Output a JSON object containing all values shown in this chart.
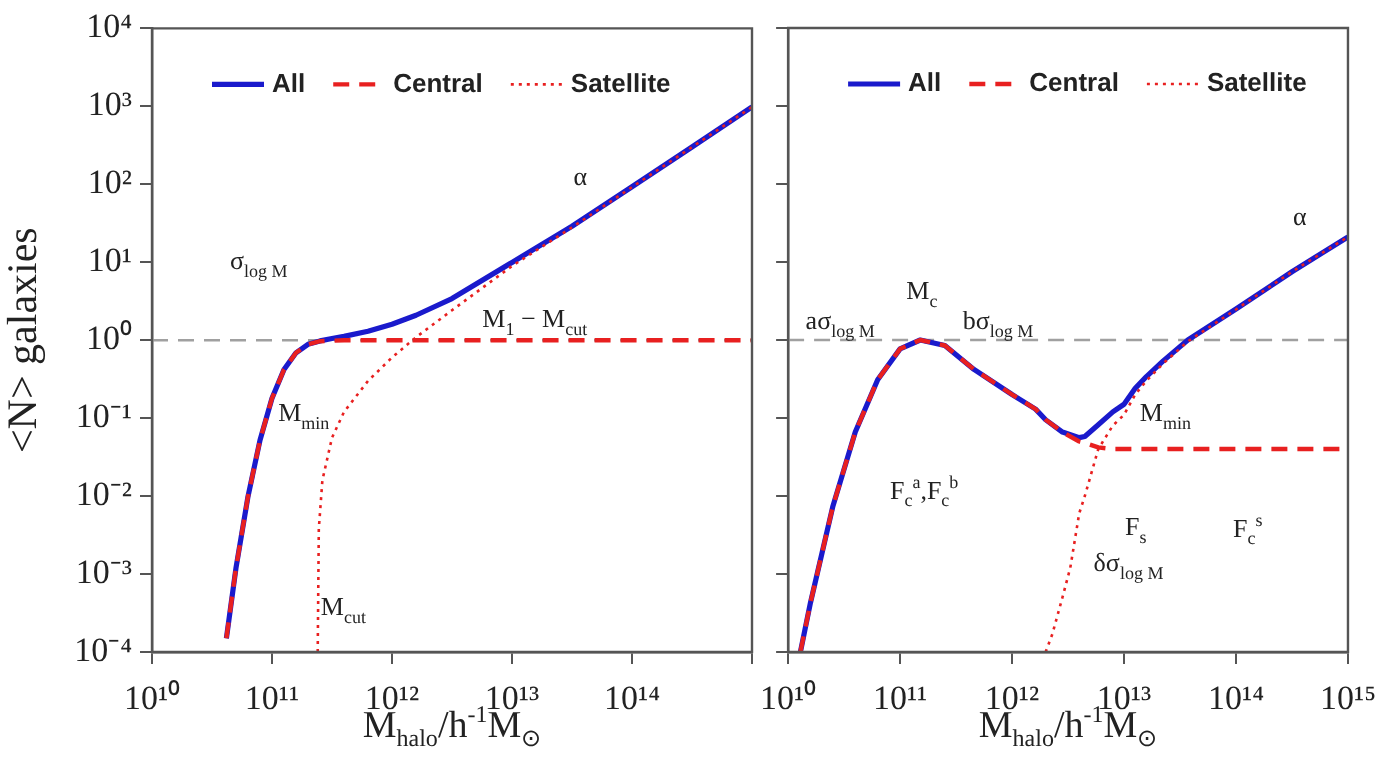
{
  "chart_data": [
    {
      "type": "line",
      "ylabel": "<N> galaxies",
      "xlabel": "M$_{halo}$/h$^{-1}$M$_{⊙}$",
      "log": "xy",
      "xlim": [
        10000000000.0,
        1000000000000000.0
      ],
      "ylim": [
        0.0001,
        10000.0
      ],
      "xticks": [
        {
          "value": 10000000000.0,
          "label": "10¹⁰"
        },
        {
          "value": 100000000000.0,
          "label": "10¹¹"
        },
        {
          "value": 1000000000000.0,
          "label": "10¹²"
        },
        {
          "value": 10000000000000.0,
          "label": "10¹³"
        },
        {
          "value": 100000000000000.0,
          "label": "10¹⁴"
        },
        {
          "value": 1000000000000000.0,
          "label": null
        }
      ],
      "yticks": [
        {
          "value": 0.0001,
          "label": "10⁻⁴"
        },
        {
          "value": 0.001,
          "label": "10⁻³"
        },
        {
          "value": 0.01,
          "label": "10⁻²"
        },
        {
          "value": 0.1,
          "label": "10⁻¹"
        },
        {
          "value": 1,
          "label": "10⁰"
        },
        {
          "value": 10,
          "label": "10¹"
        },
        {
          "value": 100,
          "label": "10²"
        },
        {
          "value": 1000,
          "label": "10³"
        },
        {
          "value": 10000,
          "label": "10⁴"
        }
      ],
      "legend": "top left",
      "grid": false,
      "series": [
        {
          "name": "All",
          "color": "#1a1acc",
          "line_style": "solid",
          "x": [
            41690000000.0,
            50120000000.0,
            63100000000.0,
            79430000000.0,
            100000000000.0,
            125900000000.0,
            158500000000.0,
            199500000000.0,
            251200000000.0,
            316200000000.0,
            398100000000.0,
            631000000000.0,
            1000000000000.0,
            1585000000000.0,
            3162000000000.0,
            10000000000000.0,
            31620000000000.0,
            100000000000000.0,
            316200000000000.0,
            1000000000000000.0
          ],
          "values": [
            0.00015,
            0.0012,
            0.0099,
            0.052,
            0.18,
            0.42,
            0.69,
            0.885,
            0.98,
            1.05,
            1.12,
            1.3,
            1.6,
            2.09,
            3.42,
            9.95,
            29,
            93,
            301,
            981
          ]
        },
        {
          "name": "Central",
          "color": "#e82020",
          "line_style": "dashed",
          "x": [
            41690000000.0,
            50120000000.0,
            63100000000.0,
            79430000000.0,
            100000000000.0,
            125900000000.0,
            158500000000.0,
            199500000000.0,
            251200000000.0,
            398100000000.0,
            1000000000000.0,
            10000000000000.0,
            100000000000000.0,
            1000000000000000.0
          ],
          "values": [
            0.00015,
            0.0012,
            0.0099,
            0.052,
            0.18,
            0.42,
            0.69,
            0.885,
            0.97,
            1,
            1,
            1,
            1,
            1
          ]
        },
        {
          "name": "Satellite",
          "color": "#e82020",
          "line_style": "dotted",
          "x": [
            240400000000.0,
            245500000000.0,
            263000000000.0,
            316200000000.0,
            398100000000.0,
            631000000000.0,
            1000000000000.0,
            1585000000000.0,
            3162000000000.0,
            10000000000000.0,
            31620000000000.0,
            100000000000000.0,
            316200000000000.0,
            1000000000000000.0
          ],
          "values": [
            0.0001,
            0.0038,
            0.016,
            0.056,
            0.12,
            0.3,
            0.6,
            1.09,
            2.42,
            8.95,
            28,
            92,
            300,
            980
          ]
        }
      ],
      "ref_lines": [
        {
          "axis": "y",
          "value": 1,
          "color": "#a0a0a0",
          "line_style": "dashed"
        }
      ],
      "annotations": [
        "σ$_{log M}$",
        "M$_{min}$",
        "M$_{1}$ − M$_{cut}$",
        "α",
        "M$_{cut}$"
      ]
    },
    {
      "type": "line",
      "xlabel": "M$_{halo}$/h$^{-1}$M$_{⊙}$",
      "log": "xy",
      "xlim": [
        10000000000.0,
        1000000000000000.0
      ],
      "ylim": [
        0.0001,
        10000.0
      ],
      "tick_labels": "x",
      "xticks": [
        {
          "value": 10000000000.0,
          "label": "10¹⁰"
        },
        {
          "value": 100000000000.0,
          "label": "10¹¹"
        },
        {
          "value": 1000000000000.0,
          "label": "10¹²"
        },
        {
          "value": 10000000000000.0,
          "label": "10¹³"
        },
        {
          "value": 100000000000000.0,
          "label": "10¹⁴"
        },
        {
          "value": 1000000000000000.0,
          "label": "10¹⁵"
        }
      ],
      "yticks": [
        {
          "value": 0.0001,
          "label": null
        },
        {
          "value": 0.001,
          "label": null
        },
        {
          "value": 0.01,
          "label": null
        },
        {
          "value": 0.1,
          "label": null
        },
        {
          "value": 1,
          "label": null
        },
        {
          "value": 10,
          "label": null
        },
        {
          "value": 100,
          "label": null
        },
        {
          "value": 1000,
          "label": null
        },
        {
          "value": 10000,
          "label": null
        }
      ],
      "legend": "top left",
      "grid": false,
      "series": [
        {
          "name": "All",
          "color": "#1a1acc",
          "line_style": "solid",
          "x": [
            12880000000.0,
            15850000000.0,
            25120000000.0,
            39810000000.0,
            63100000000.0,
            100000000000.0,
            151400000000.0,
            251200000000.0,
            457100000000.0,
            1000000000000.0,
            1622000000000.0,
            1995000000000.0,
            2818000000000.0,
            3981000000000.0,
            4467000000000.0,
            5888000000000.0,
            7943000000000.0,
            10000000000000.0,
            12590000000000.0,
            15850000000000.0,
            22390000000000.0,
            37150000000000.0,
            100000000000000.0,
            316200000000000.0,
            1000000000000000.0
          ],
          "values": [
            0.0001,
            0.00043,
            0.0074,
            0.066,
            0.31,
            0.77,
            1.0,
            0.85,
            0.42,
            0.2,
            0.13,
            0.095,
            0.066,
            0.056,
            0.058,
            0.082,
            0.12,
            0.15,
            0.24,
            0.34,
            0.54,
            1.0,
            2.5,
            7.5,
            21
          ]
        },
        {
          "name": "Central",
          "color": "#e82020",
          "line_style": "dashed",
          "x": [
            12880000000.0,
            15850000000.0,
            25120000000.0,
            39810000000.0,
            63100000000.0,
            100000000000.0,
            151400000000.0,
            251200000000.0,
            457100000000.0,
            1000000000000.0,
            1622000000000.0,
            1995000000000.0,
            2818000000000.0,
            3981000000000.0,
            4467000000000.0,
            5888000000000.0,
            7943000000000.0,
            10000000000000.0,
            100000000000000.0,
            1000000000000000.0
          ],
          "values": [
            0.0001,
            0.00043,
            0.0074,
            0.066,
            0.31,
            0.77,
            1.0,
            0.85,
            0.42,
            0.2,
            0.13,
            0.095,
            0.066,
            0.05,
            0.048,
            0.042,
            0.04,
            0.04,
            0.04,
            0.04
          ]
        },
        {
          "name": "Satellite",
          "color": "#e82020",
          "line_style": "dotted",
          "x": [
            1995000000000.0,
            2291000000000.0,
            2818000000000.0,
            3311000000000.0,
            3981000000000.0,
            4467000000000.0,
            5888000000000.0,
            7943000000000.0,
            10000000000000.0,
            12590000000000.0,
            15850000000000.0,
            22390000000000.0,
            37150000000000.0,
            100000000000000.0,
            316200000000000.0,
            1000000000000000.0
          ],
          "values": [
            0.0001,
            0.00017,
            0.0005,
            0.0012,
            0.006,
            0.01,
            0.04,
            0.08,
            0.11,
            0.2,
            0.3,
            0.5,
            0.96,
            2.46,
            7.5,
            21
          ]
        }
      ],
      "ref_lines": [
        {
          "axis": "y",
          "value": 1,
          "color": "#a0a0a0",
          "line_style": "dashed"
        }
      ],
      "annotations": [
        "aσ$_{log M}$",
        "M$_{c}$",
        "bσ$_{log M}$",
        "α",
        "M$_{min}$",
        "F$_{c}$$^{a}$,F$_{c}$$^{b}$",
        "F$_{s}$",
        "F$_{c}$$^{s}$",
        "δσ$_{log M}$"
      ]
    }
  ]
}
